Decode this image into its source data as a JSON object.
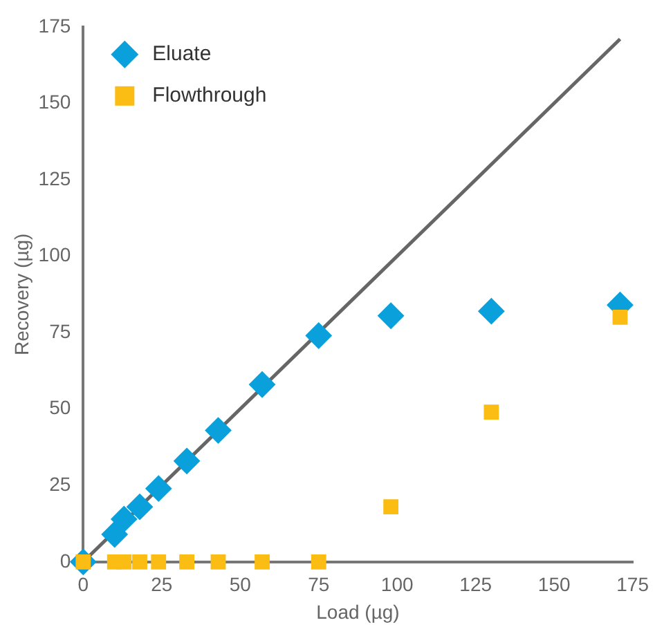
{
  "chart_data": {
    "type": "scatter",
    "xlabel": "Load (µg)",
    "ylabel": "Recovery (µg)",
    "xlim": [
      0,
      175
    ],
    "ylim": [
      0,
      175
    ],
    "xticks": [
      0,
      25,
      50,
      75,
      100,
      125,
      150,
      175
    ],
    "yticks": [
      0,
      25,
      50,
      75,
      100,
      125,
      150,
      175
    ],
    "grid": false,
    "legend": "top left",
    "series": [
      {
        "name": "Eluate",
        "color": "#0aa0dc",
        "marker": "diamond",
        "x": [
          0,
          10,
          13,
          18,
          24,
          33,
          43,
          57,
          75,
          98,
          130,
          171
        ],
        "values": [
          0,
          9,
          14,
          18,
          24,
          33,
          43,
          58,
          74,
          80.5,
          82,
          84
        ]
      },
      {
        "name": "Flowthrough",
        "color": "#fbbd13",
        "marker": "square",
        "x": [
          0,
          10,
          13,
          18,
          24,
          33,
          43,
          57,
          75,
          98,
          130,
          171
        ],
        "values": [
          0,
          0,
          0,
          0,
          0,
          0,
          0,
          0,
          0,
          18,
          49,
          80
        ]
      },
      {
        "type": "line",
        "color": "#666666",
        "marker": "none",
        "x": [
          0,
          171
        ],
        "values": [
          0,
          171
        ]
      }
    ]
  }
}
